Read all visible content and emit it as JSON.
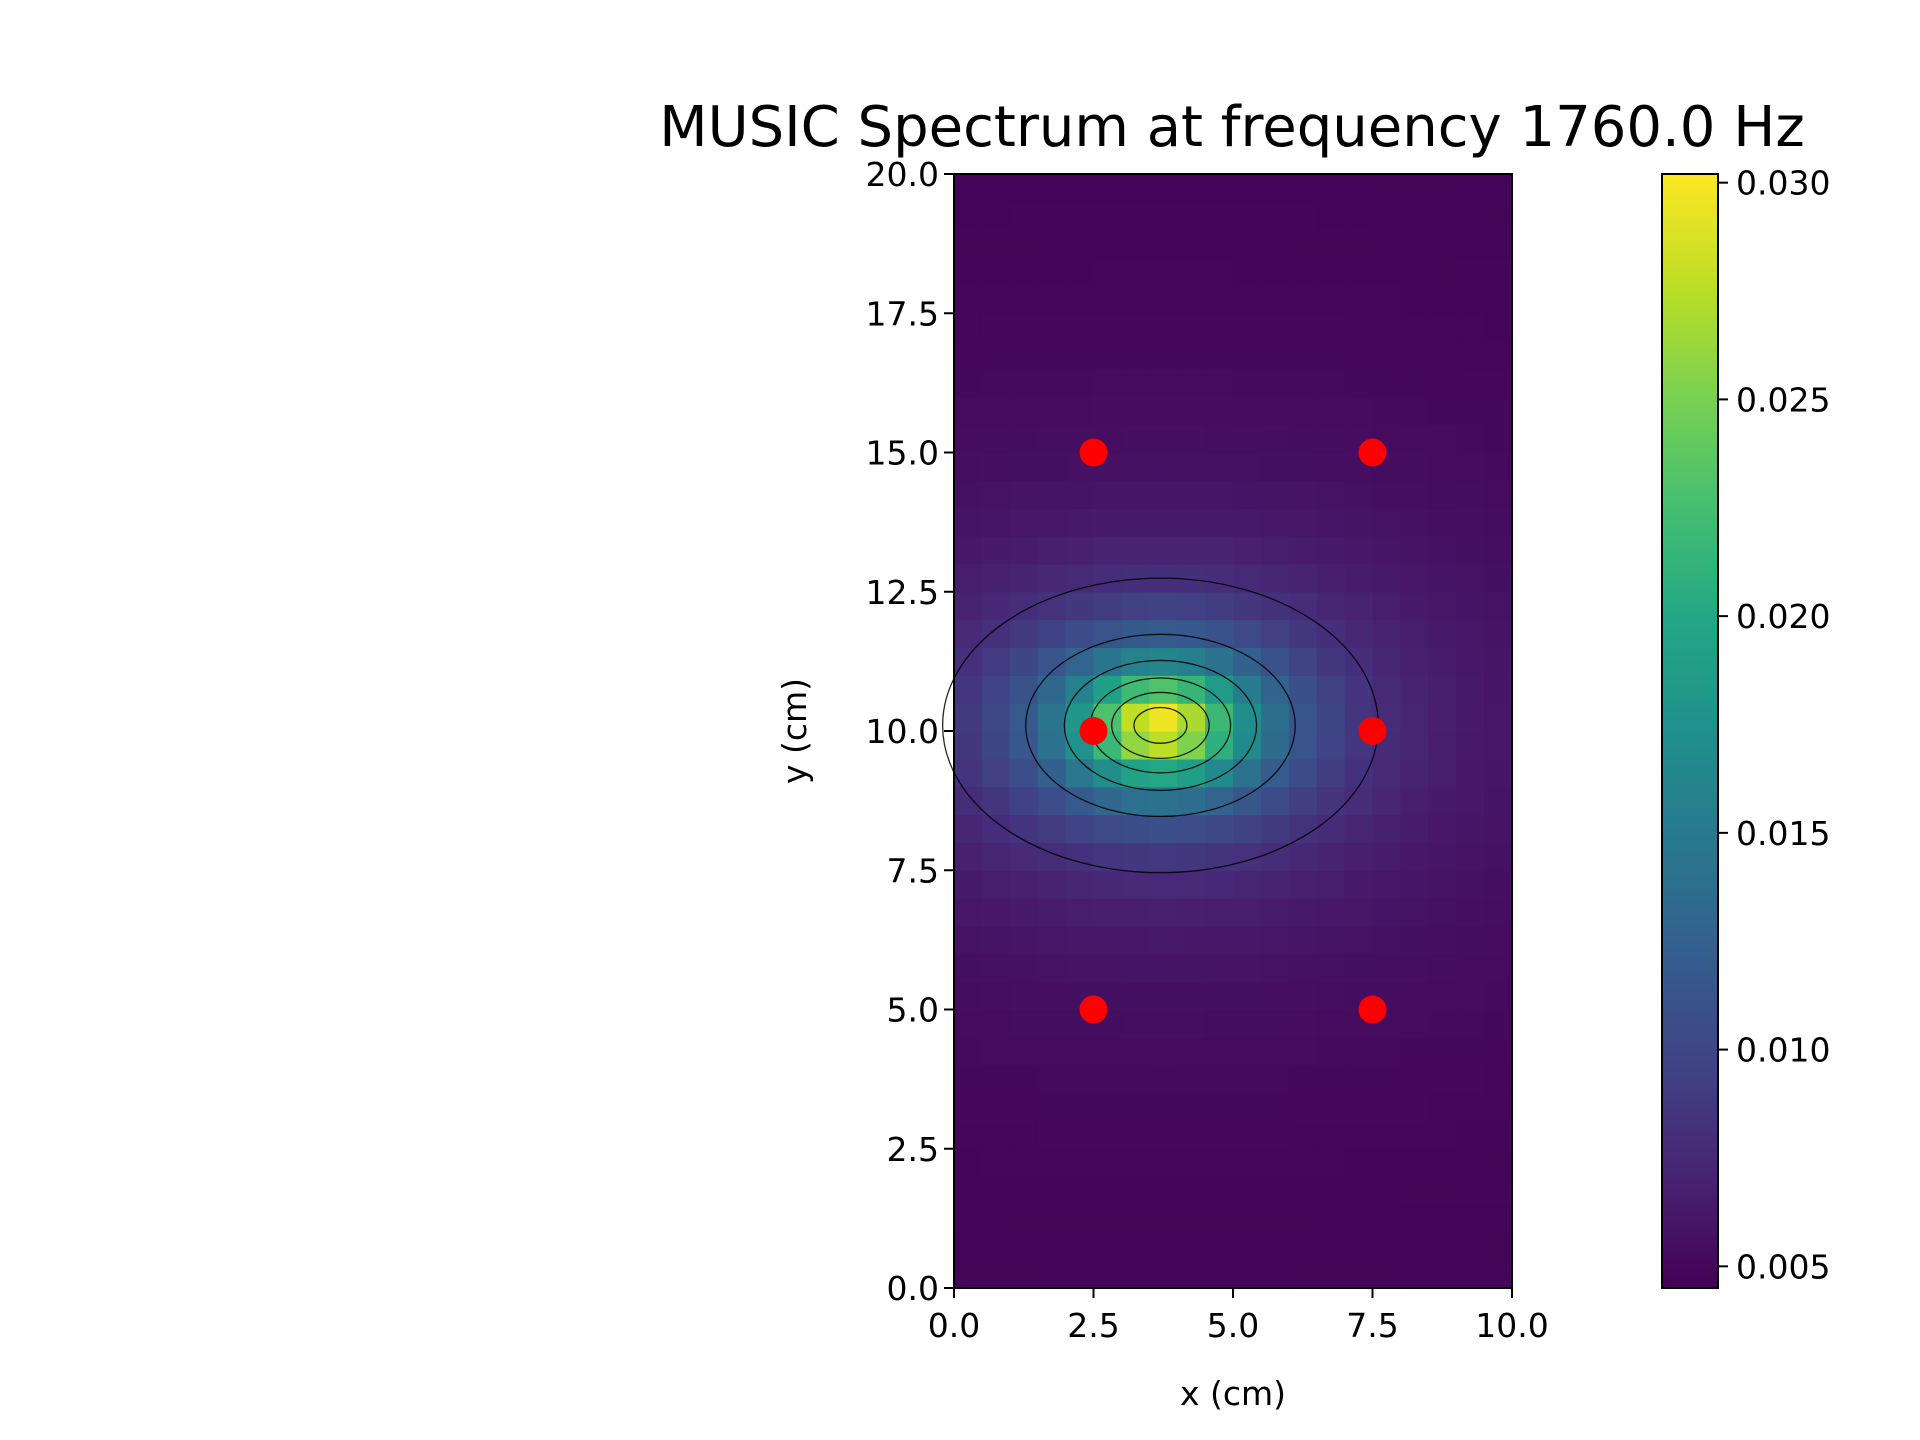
{
  "chart_data": {
    "type": "heatmap",
    "title": "MUSIC Spectrum at frequency 1760.0 Hz",
    "xlabel": "x (cm)",
    "ylabel": "y (cm)",
    "xlim": [
      0,
      10
    ],
    "ylim": [
      0,
      20
    ],
    "x_ticks": [
      "0.0",
      "2.5",
      "5.0",
      "7.5",
      "10.0"
    ],
    "y_ticks": [
      "0.0",
      "2.5",
      "5.0",
      "7.5",
      "10.0",
      "12.5",
      "15.0",
      "17.5",
      "20.0"
    ],
    "colormap": "viridis",
    "colorbar": {
      "range": [
        0.0045,
        0.0302
      ],
      "ticks": [
        "0.005",
        "0.010",
        "0.015",
        "0.020",
        "0.025",
        "0.030"
      ]
    },
    "grid_resolution": {
      "nx": 20,
      "ny": 40
    },
    "spectrum_model": {
      "background_min": 0.0045,
      "peak": {
        "x": 3.7,
        "y": 10.1,
        "value": 0.0302
      },
      "spread_x": 1.55,
      "spread_y": 1.05
    },
    "contour_levels": [
      0.008,
      0.012,
      0.016,
      0.02,
      0.024,
      0.028
    ],
    "sensors": [
      {
        "x": 2.5,
        "y": 15
      },
      {
        "x": 7.5,
        "y": 15
      },
      {
        "x": 2.5,
        "y": 10
      },
      {
        "x": 7.5,
        "y": 10
      },
      {
        "x": 2.5,
        "y": 5
      },
      {
        "x": 7.5,
        "y": 5
      }
    ],
    "sensor_color": "#ff0000",
    "contour_color": "#000000",
    "grid": false
  }
}
